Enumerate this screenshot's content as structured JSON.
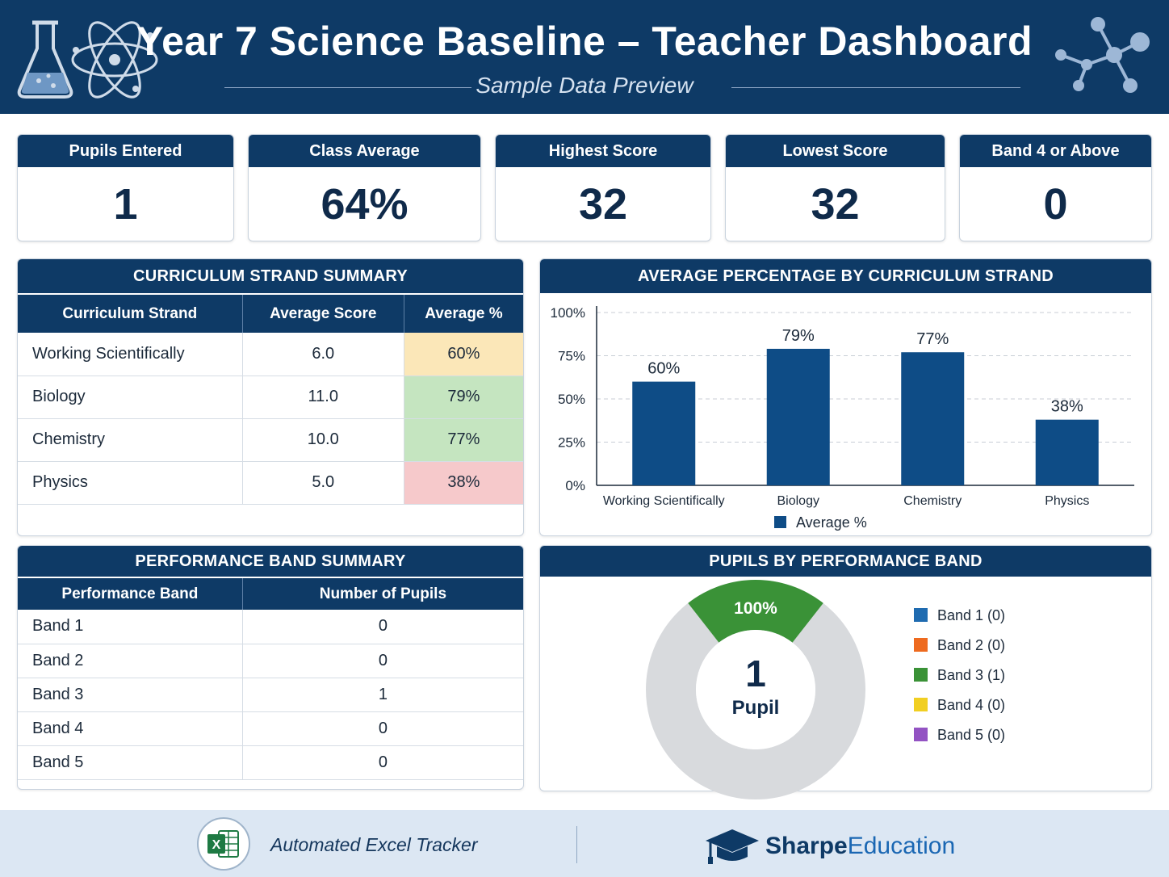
{
  "header": {
    "title": "Year 7 Science Baseline – Teacher Dashboard",
    "subtitle": "Sample Data Preview"
  },
  "kpis": [
    {
      "label": "Pupils Entered",
      "value": "1"
    },
    {
      "label": "Class Average",
      "value": "64%"
    },
    {
      "label": "Highest Score",
      "value": "32"
    },
    {
      "label": "Lowest Score",
      "value": "32"
    },
    {
      "label": "Band 4 or Above",
      "value": "0"
    }
  ],
  "strand_summary": {
    "title": "CURRICULUM STRAND SUMMARY",
    "columns": [
      "Curriculum Strand",
      "Average Score",
      "Average %"
    ],
    "rows": [
      {
        "strand": "Working Scientifically",
        "score": "6.0",
        "pct": "60%",
        "color": "#fbe7b8"
      },
      {
        "strand": "Biology",
        "score": "11.0",
        "pct": "79%",
        "color": "#c5e5c0"
      },
      {
        "strand": "Chemistry",
        "score": "10.0",
        "pct": "77%",
        "color": "#c5e5c0"
      },
      {
        "strand": "Physics",
        "score": "5.0",
        "pct": "38%",
        "color": "#f6c9cb"
      }
    ]
  },
  "band_summary": {
    "title": "PERFORMANCE BAND SUMMARY",
    "columns": [
      "Performance Band",
      "Number of Pupils"
    ],
    "rows": [
      {
        "band": "Band 1",
        "count": "0"
      },
      {
        "band": "Band 2",
        "count": "0"
      },
      {
        "band": "Band 3",
        "count": "1"
      },
      {
        "band": "Band 4",
        "count": "0"
      },
      {
        "band": "Band 5",
        "count": "0"
      }
    ]
  },
  "chart_data": [
    {
      "type": "bar",
      "title": "AVERAGE PERCENTAGE BY CURRICULUM STRAND",
      "categories": [
        "Working Scientifically",
        "Biology",
        "Chemistry",
        "Physics"
      ],
      "series": [
        {
          "name": "Average %",
          "values": [
            60,
            79,
            77,
            38
          ]
        }
      ],
      "data_labels": [
        "60%",
        "79%",
        "77%",
        "38%"
      ],
      "ylim": [
        0,
        100
      ],
      "yticks": [
        "0%",
        "25%",
        "50%",
        "75%",
        "100%"
      ],
      "grid": true,
      "legend": "bottom",
      "color": "#0e4c86"
    },
    {
      "type": "pie",
      "title": "PUPILS BY PERFORMANCE BAND",
      "center_value": "1",
      "center_label": "Pupil",
      "slice_label": "100%",
      "slices": [
        {
          "name": "Band 1 (0)",
          "value": 0,
          "color": "#1f6bb0"
        },
        {
          "name": "Band 2 (0)",
          "value": 0,
          "color": "#ee6a1f"
        },
        {
          "name": "Band 3 (1)",
          "value": 1,
          "color": "#3a9237"
        },
        {
          "name": "Band 4 (0)",
          "value": 0,
          "color": "#f1cf22"
        },
        {
          "name": "Band 5 (0)",
          "value": 0,
          "color": "#9353c3"
        }
      ],
      "legend": "right"
    }
  ],
  "footer": {
    "tracker": "Automated Excel Tracker",
    "brand_bold": "Sharpe",
    "brand_light": "Education"
  }
}
